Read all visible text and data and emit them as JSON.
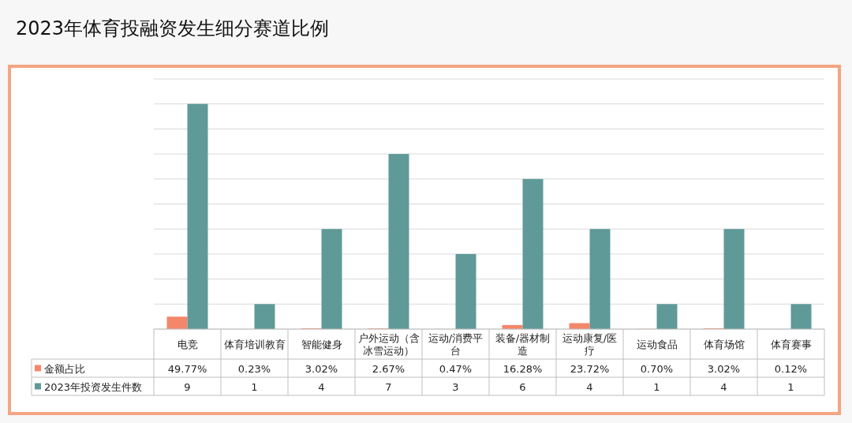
{
  "chart_data": {
    "type": "bar",
    "title": "2023年体育投融资发生细分赛道比例",
    "categories": [
      "电竞",
      "体育培训教育",
      "智能健身",
      "户外运动（含冰雪运动）",
      "运动/消费平台",
      "装备/器材制造",
      "运动康复/医疗",
      "运动食品",
      "体育场馆",
      "体育赛事"
    ],
    "series": [
      {
        "name": "金额占比",
        "color": "#f4876a",
        "axis": "y2",
        "values": [
          49.77,
          0.23,
          3.02,
          2.67,
          0.47,
          16.28,
          23.72,
          0.7,
          3.02,
          0.12
        ],
        "value_labels": [
          "49.77%",
          "0.23%",
          "3.02%",
          "2.67%",
          "0.47%",
          "16.28%",
          "23.72%",
          "0.70%",
          "3.02%",
          "0.12%"
        ]
      },
      {
        "name": "2023年投资发生件数",
        "color": "#5f9a99",
        "values": [
          9,
          1,
          4,
          7,
          3,
          6,
          4,
          1,
          4,
          1
        ],
        "value_labels": [
          "9",
          "1",
          "4",
          "7",
          "3",
          "6",
          "4",
          "1",
          "4",
          "1"
        ]
      }
    ],
    "ylim": [
      0,
      10
    ],
    "yticks": [
      {
        "value": 0,
        "label": null
      },
      {
        "value": 1,
        "label": null
      },
      {
        "value": 2,
        "label": null
      },
      {
        "value": 3,
        "label": null
      },
      {
        "value": 4,
        "label": null
      },
      {
        "value": 5,
        "label": null
      },
      {
        "value": 6,
        "label": null
      },
      {
        "value": 7,
        "label": null
      },
      {
        "value": 8,
        "label": null
      },
      {
        "value": 9,
        "label": null
      },
      {
        "value": 10,
        "label": null
      }
    ],
    "y2lim": [
      0,
      1000
    ],
    "grid": "y",
    "legend": "bottom"
  }
}
